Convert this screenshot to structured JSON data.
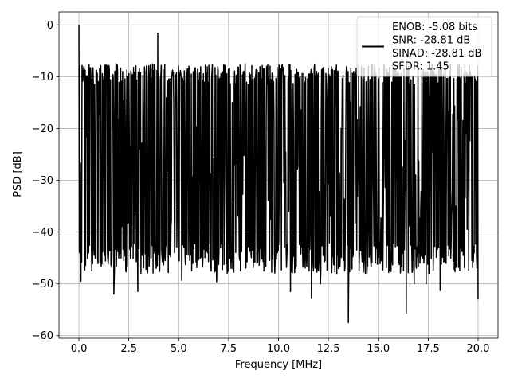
{
  "chart_data": {
    "type": "line",
    "title": "",
    "xlabel": "Frequency [MHz]",
    "ylabel": "PSD [dB]",
    "xlim": [
      -1.0,
      21.0
    ],
    "ylim": [
      -60.5,
      2.5
    ],
    "x_ticks": [
      0.0,
      2.5,
      5.0,
      7.5,
      10.0,
      12.5,
      15.0,
      17.5,
      20.0
    ],
    "x_tick_labels": [
      "0.0",
      "2.5",
      "5.0",
      "7.5",
      "10.0",
      "12.5",
      "15.0",
      "17.5",
      "20.0"
    ],
    "y_ticks": [
      0,
      -10,
      -20,
      -30,
      -40,
      -50,
      -60
    ],
    "y_tick_labels": [
      "0",
      "−10",
      "−20",
      "−30",
      "−40",
      "−50",
      "−60"
    ],
    "grid": true,
    "legend_position": "top-right",
    "line_color": "#000000",
    "series": [
      {
        "name": "ENOB: -5.08 bits\nSNR: -28.81 dB\nSINAD: -28.81 dB\nSFDR: 1.45",
        "x_start": 0.0,
        "x_end": 20.0,
        "points": 1024,
        "spike_peaks": [
          {
            "x": 0.0,
            "y": 0.0
          },
          {
            "x": 3.95,
            "y": -1.6
          }
        ],
        "approx_upper_envelope_db": -10,
        "approx_lower_envelope_db": -45,
        "min_value": {
          "x": 13.5,
          "y": -57.5
        },
        "notable_dips": [
          {
            "x": 0.1,
            "y": -49.5
          },
          {
            "x": 1.75,
            "y": -52.0
          },
          {
            "x": 2.95,
            "y": -51.5
          },
          {
            "x": 5.15,
            "y": -49.3
          },
          {
            "x": 6.9,
            "y": -49.6
          },
          {
            "x": 10.6,
            "y": -51.5
          },
          {
            "x": 11.65,
            "y": -52.8
          },
          {
            "x": 12.1,
            "y": -50.0
          },
          {
            "x": 13.5,
            "y": -57.5
          },
          {
            "x": 16.4,
            "y": -55.7
          },
          {
            "x": 16.8,
            "y": -50.0
          },
          {
            "x": 17.4,
            "y": -50.0
          },
          {
            "x": 18.1,
            "y": -51.3
          },
          {
            "x": 20.0,
            "y": -53.0
          }
        ]
      }
    ]
  }
}
